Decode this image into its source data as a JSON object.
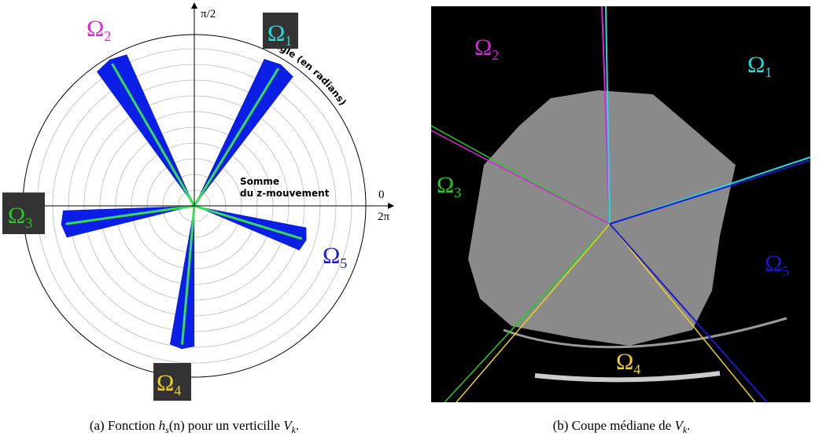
{
  "left": {
    "axis": {
      "top": "π/2",
      "zero": "0",
      "two_pi": "2π",
      "angle_label": "Angle (en radians)",
      "radial_label": [
        "Somme",
        "du z-mouvement"
      ]
    },
    "regions": [
      {
        "symbol": "Ω",
        "sub": "1"
      },
      {
        "symbol": "Ω",
        "sub": "2"
      },
      {
        "symbol": "Ω",
        "sub": "3"
      },
      {
        "symbol": "Ω",
        "sub": "4"
      },
      {
        "symbol": "Ω",
        "sub": "5"
      }
    ]
  },
  "right": {
    "regions": [
      {
        "symbol": "Ω",
        "sub": "1"
      },
      {
        "symbol": "Ω",
        "sub": "2"
      },
      {
        "symbol": "Ω",
        "sub": "3"
      },
      {
        "symbol": "Ω",
        "sub": "4"
      },
      {
        "symbol": "Ω",
        "sub": "5"
      }
    ]
  },
  "captions": [
    [
      "(a) Fonction ",
      "h",
      "s",
      "(n) pour un verticille ",
      "V",
      "k",
      "."
    ],
    [
      "(b) Coupe médiane de ",
      "V",
      "k",
      "."
    ]
  ]
}
